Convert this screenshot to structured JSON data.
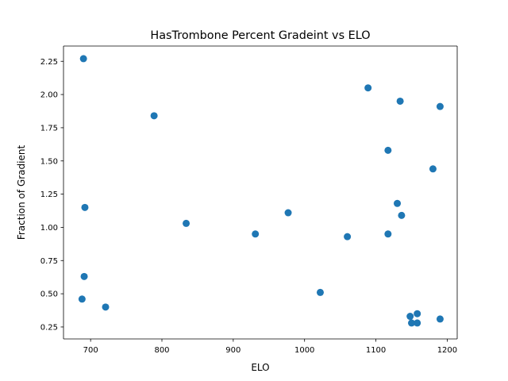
{
  "chart_data": {
    "type": "scatter",
    "title": "HasTrombone Percent Gradeint vs ELO",
    "xlabel": "ELO",
    "ylabel": "Fraction of Gradient",
    "xlim": [
      662,
      1214
    ],
    "ylim": [
      0.16,
      2.365
    ],
    "xticks": [
      700,
      800,
      900,
      1000,
      1100,
      1200
    ],
    "yticks": [
      0.25,
      0.5,
      0.75,
      1.0,
      1.25,
      1.5,
      1.75,
      2.0,
      2.25
    ],
    "ytick_labels": [
      "0.25",
      "0.50",
      "0.75",
      "1.00",
      "1.25",
      "1.50",
      "1.75",
      "2.00",
      "2.25"
    ],
    "grid": false,
    "marker_color": "#1f77b4",
    "series": [
      {
        "x": [
          690,
          692,
          691,
          688,
          721,
          789,
          834,
          931,
          977,
          1022,
          1060,
          1089,
          1117,
          1117,
          1130,
          1134,
          1136,
          1148,
          1150,
          1158,
          1158,
          1180,
          1190,
          1190
        ],
        "y": [
          2.27,
          1.15,
          0.63,
          0.46,
          0.4,
          1.84,
          1.03,
          0.95,
          1.11,
          0.51,
          0.93,
          2.05,
          1.58,
          0.95,
          1.18,
          1.95,
          1.09,
          0.33,
          0.28,
          0.35,
          0.28,
          1.44,
          1.91,
          0.31
        ]
      }
    ]
  }
}
